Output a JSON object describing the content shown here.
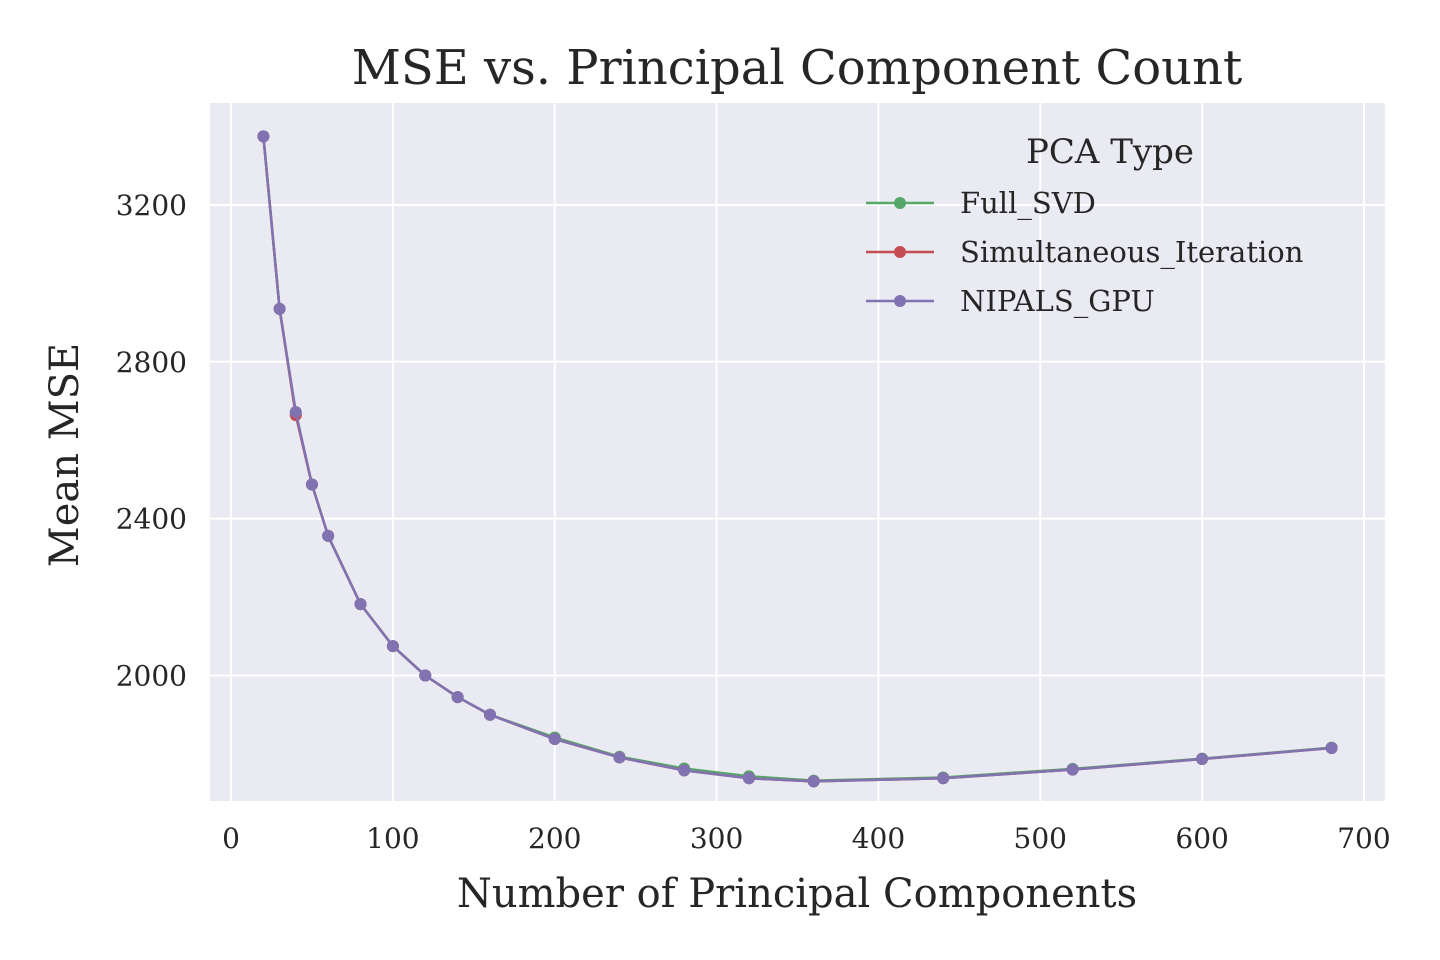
{
  "chart_data": {
    "type": "line",
    "title": "MSE vs. Principal Component Count",
    "xlabel": "Number of Principal Components",
    "ylabel": "Mean MSE",
    "xlim": [
      -13,
      713
    ],
    "ylim": [
      1680,
      3460
    ],
    "xticks": [
      0,
      100,
      200,
      300,
      400,
      500,
      600,
      700
    ],
    "yticks": [
      2000,
      2400,
      2800,
      3200
    ],
    "grid": true,
    "legend": {
      "title": "PCA Type",
      "placement": "top-right"
    },
    "x": [
      20,
      30,
      40,
      50,
      60,
      80,
      100,
      120,
      140,
      160,
      200,
      240,
      280,
      320,
      360,
      440,
      520,
      600,
      680
    ],
    "series": [
      {
        "name": "Full_SVD",
        "color": "#55a868",
        "values": [
          3375,
          2935,
          2668,
          2487,
          2356,
          2182,
          2075,
          2000,
          1945,
          1900,
          1842,
          1793,
          1763,
          1743,
          1732,
          1740,
          1762,
          1788,
          1816
        ]
      },
      {
        "name": "Simultaneous_Iteration",
        "color": "#c44e52",
        "values": [
          3375,
          2935,
          2664,
          2487,
          2356,
          2182,
          2075,
          2000,
          1945,
          1900,
          1838,
          1791,
          1758,
          1738,
          1730,
          1738,
          1760,
          1787,
          1815
        ]
      },
      {
        "name": "NIPALS_GPU",
        "color": "#8172b2",
        "values": [
          3375,
          2935,
          2672,
          2487,
          2356,
          2182,
          2075,
          2000,
          1945,
          1900,
          1838,
          1791,
          1758,
          1738,
          1730,
          1738,
          1760,
          1787,
          1815
        ]
      }
    ]
  }
}
